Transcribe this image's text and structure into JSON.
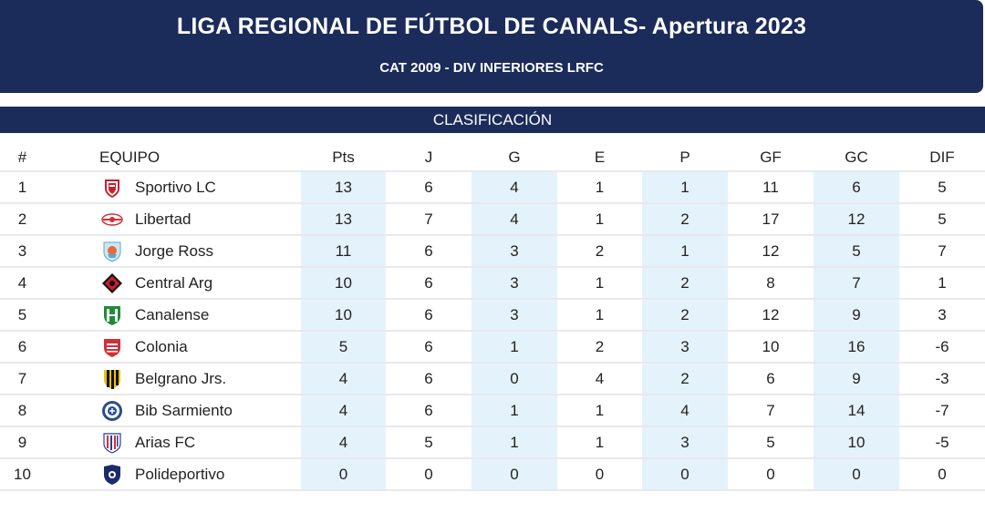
{
  "header": {
    "title": "LIGA REGIONAL DE FÚTBOL DE CANALS- Apertura 2023",
    "subtitle": "CAT 2009 - DIV INFERIORES LRFC"
  },
  "section": {
    "label": "CLASIFICACIÓN"
  },
  "columns": [
    "#",
    "EQUIPO",
    "Pts",
    "J",
    "G",
    "E",
    "P",
    "GF",
    "GC",
    "DIF"
  ],
  "rows": [
    {
      "pos": "1",
      "team": "Sportivo LC",
      "crest": "sportivo-crest-icon",
      "pts": "13",
      "j": "6",
      "g": "4",
      "e": "1",
      "p": "1",
      "gf": "11",
      "gc": "6",
      "dif": "5"
    },
    {
      "pos": "2",
      "team": "Libertad",
      "crest": "libertad-crest-icon",
      "pts": "13",
      "j": "7",
      "g": "4",
      "e": "1",
      "p": "2",
      "gf": "17",
      "gc": "12",
      "dif": "5"
    },
    {
      "pos": "3",
      "team": "Jorge Ross",
      "crest": "jorge-ross-crest-icon",
      "pts": "11",
      "j": "6",
      "g": "3",
      "e": "2",
      "p": "1",
      "gf": "12",
      "gc": "5",
      "dif": "7"
    },
    {
      "pos": "4",
      "team": "Central Arg",
      "crest": "central-arg-crest-icon",
      "pts": "10",
      "j": "6",
      "g": "3",
      "e": "1",
      "p": "2",
      "gf": "8",
      "gc": "7",
      "dif": "1"
    },
    {
      "pos": "5",
      "team": "Canalense",
      "crest": "canalense-crest-icon",
      "pts": "10",
      "j": "6",
      "g": "3",
      "e": "1",
      "p": "2",
      "gf": "12",
      "gc": "9",
      "dif": "3"
    },
    {
      "pos": "6",
      "team": "Colonia",
      "crest": "colonia-crest-icon",
      "pts": "5",
      "j": "6",
      "g": "1",
      "e": "2",
      "p": "3",
      "gf": "10",
      "gc": "16",
      "dif": "-6"
    },
    {
      "pos": "7",
      "team": "Belgrano Jrs.",
      "crest": "belgrano-crest-icon",
      "pts": "4",
      "j": "6",
      "g": "0",
      "e": "4",
      "p": "2",
      "gf": "6",
      "gc": "9",
      "dif": "-3"
    },
    {
      "pos": "8",
      "team": "Bib Sarmiento",
      "crest": "bib-sarmiento-crest-icon",
      "pts": "4",
      "j": "6",
      "g": "1",
      "e": "1",
      "p": "4",
      "gf": "7",
      "gc": "14",
      "dif": "-7"
    },
    {
      "pos": "9",
      "team": "Arias FC",
      "crest": "arias-crest-icon",
      "pts": "4",
      "j": "5",
      "g": "1",
      "e": "1",
      "p": "3",
      "gf": "5",
      "gc": "10",
      "dif": "-5"
    },
    {
      "pos": "10",
      "team": "Polideportivo",
      "crest": "polideportivo-crest-icon",
      "pts": "0",
      "j": "0",
      "g": "0",
      "e": "0",
      "p": "0",
      "gf": "0",
      "gc": "0",
      "dif": "0"
    }
  ],
  "colors": {
    "header_bg": "#1b2b5a",
    "alt_column_bg": "#e4f2fb",
    "row_border": "#e7e9ee"
  }
}
